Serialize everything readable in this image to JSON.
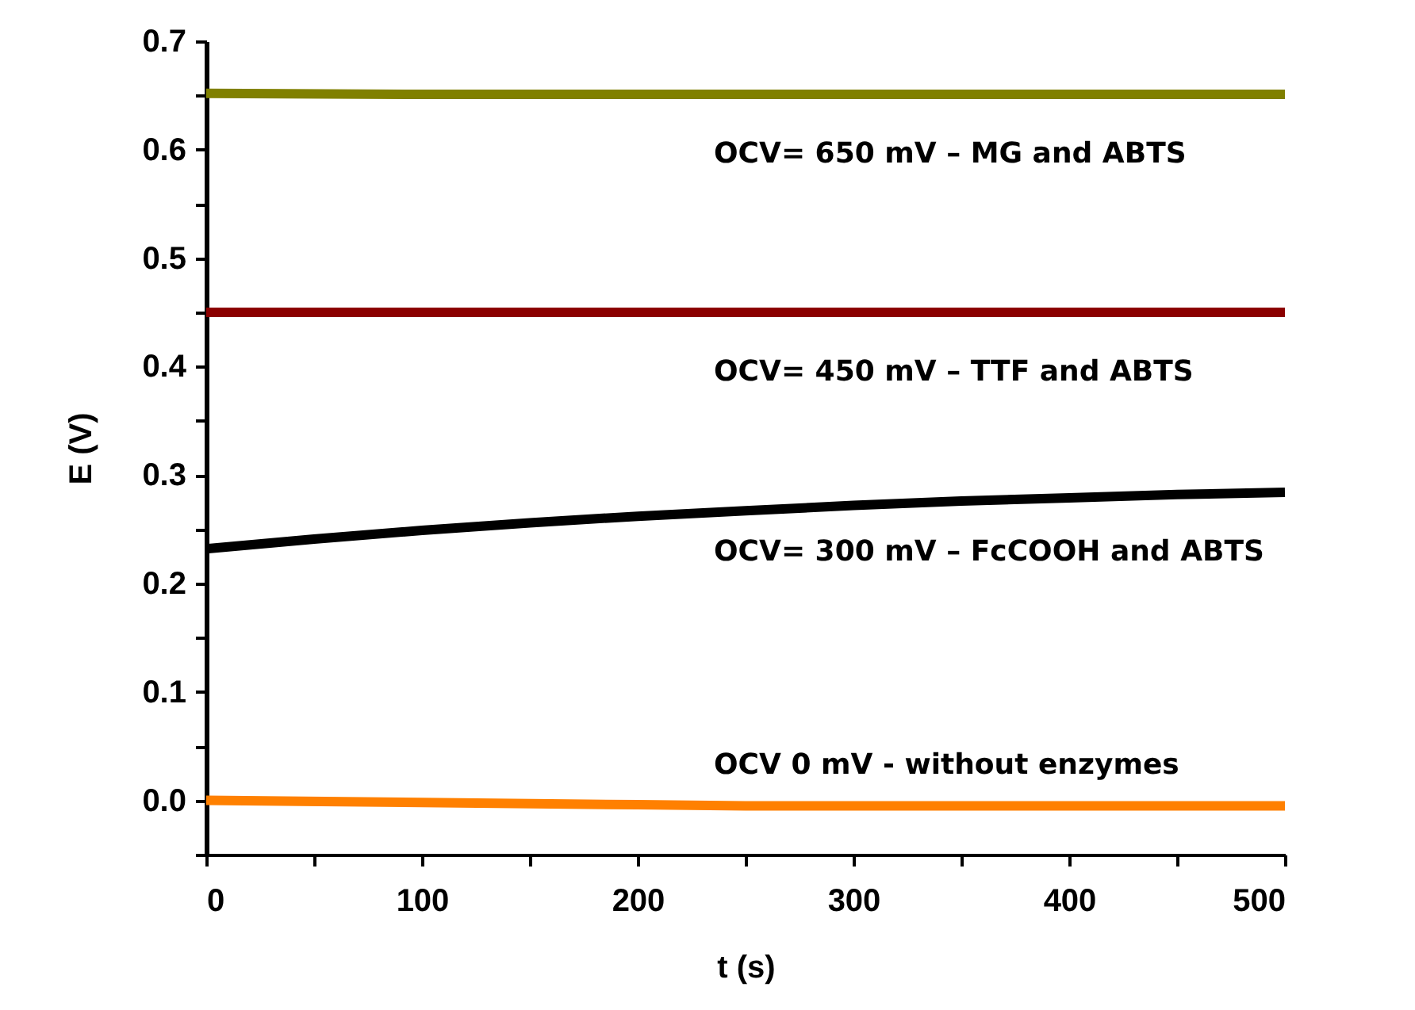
{
  "chart_data": {
    "type": "line",
    "xlabel": "t (s)",
    "ylabel": "E (V)",
    "xlim": [
      0,
      500
    ],
    "ylim": [
      -0.05,
      0.7
    ],
    "xticks": [
      0,
      {
        "value": 50,
        "label": null
      },
      100,
      {
        "value": 150,
        "label": null
      },
      200,
      {
        "value": 250,
        "label": null
      },
      300,
      {
        "value": 350,
        "label": null
      },
      400,
      {
        "value": 450,
        "label": null
      },
      500
    ],
    "yticks": [
      {
        "value": -0.05,
        "label": null
      },
      {
        "value": 0,
        "label": "0.0"
      },
      {
        "value": 0.05,
        "label": null
      },
      0.1,
      {
        "value": 0.15,
        "label": null
      },
      0.2,
      {
        "value": 0.25,
        "label": null
      },
      0.3,
      {
        "value": 0.35,
        "label": null
      },
      0.4,
      {
        "value": 0.45,
        "label": null
      },
      0.5,
      {
        "value": 0.55,
        "label": null
      },
      0.6,
      {
        "value": 0.65,
        "label": null
      },
      0.7
    ],
    "grid": false,
    "marker": "none",
    "line_style": "solid",
    "series": [
      {
        "color": "#808000",
        "x": [
          0,
          100,
          200,
          300,
          400,
          500
        ],
        "values": [
          0.652,
          0.651,
          0.651,
          0.651,
          0.651,
          0.651
        ]
      },
      {
        "color": "#8b0000",
        "x": [
          0,
          100,
          200,
          300,
          400,
          500
        ],
        "values": [
          0.45,
          0.45,
          0.45,
          0.45,
          0.45,
          0.45
        ]
      },
      {
        "color": "#000000",
        "x": [
          0,
          50,
          100,
          150,
          200,
          250,
          300,
          350,
          400,
          450,
          500
        ],
        "values": [
          0.232,
          0.241,
          0.249,
          0.256,
          0.262,
          0.267,
          0.272,
          0.276,
          0.279,
          0.282,
          0.284
        ]
      },
      {
        "color": "#ff8000",
        "x": [
          0,
          100,
          200,
          250,
          300,
          400,
          500
        ],
        "values": [
          0.0,
          -0.002,
          -0.004,
          -0.005,
          -0.005,
          -0.005,
          -0.005
        ]
      }
    ],
    "annotations": [
      "OCV= 650 mV – MG and ABTS",
      "OCV= 450 mV – TTF and ABTS",
      "OCV= 300 mV – FcCOOH and ABTS",
      "OCV 0 mV - without enzymes"
    ]
  }
}
